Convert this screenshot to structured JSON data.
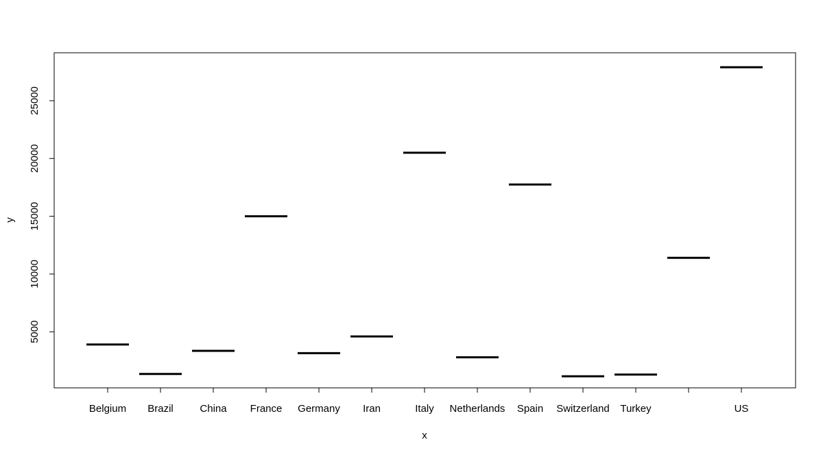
{
  "chart_data": {
    "type": "bar",
    "title": "",
    "xlabel": "x",
    "ylabel": "y",
    "categories": [
      "Belgium",
      "Brazil",
      "China",
      "France",
      "Germany",
      "Iran",
      "Italy",
      "Netherlands",
      "Spain",
      "Switzerland",
      "Turkey",
      "",
      "US"
    ],
    "values": [
      3900,
      1350,
      3350,
      15000,
      3150,
      4600,
      20500,
      2800,
      17750,
      1150,
      1300,
      11400,
      27900
    ],
    "y_ticks": [
      5000,
      10000,
      15000,
      20000,
      25000
    ],
    "ylim": [
      150,
      29150
    ],
    "grid": false,
    "legend": "none",
    "mark_color": "#000000"
  }
}
